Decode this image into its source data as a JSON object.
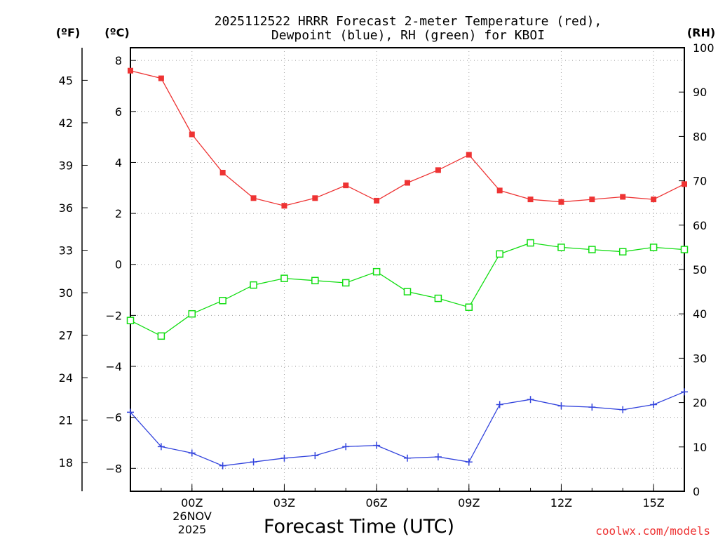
{
  "title_line1": "2025112522 HRRR Forecast 2-meter Temperature (red),",
  "title_line2": "Dewpoint (blue), RH (green) for KBOI",
  "unit_f": "(ºF)",
  "unit_c": "(ºC)",
  "unit_rh": "(RH)",
  "xlabel": "Forecast Time (UTC)",
  "date_day": "26NOV",
  "date_year": "2025",
  "watermark": "coolwx.com/models",
  "colors": {
    "temperature": "#ee3333",
    "dewpoint": "#3344dd",
    "rh": "#11dd11"
  },
  "chart_data": {
    "type": "line",
    "title": "2025112522 HRRR Forecast 2-meter Temperature (red), Dewpoint (blue), RH (green) for KBOI",
    "xlabel": "Forecast Time (UTC)",
    "x": [
      "22Z",
      "23Z",
      "00Z",
      "01Z",
      "02Z",
      "03Z",
      "04Z",
      "05Z",
      "06Z",
      "07Z",
      "08Z",
      "09Z",
      "10Z",
      "11Z",
      "12Z",
      "13Z",
      "14Z",
      "15Z",
      "16Z"
    ],
    "x_tick_labels": [
      "00Z",
      "03Z",
      "06Z",
      "09Z",
      "12Z",
      "15Z"
    ],
    "x_tick_indices": [
      2,
      5,
      8,
      11,
      14,
      17
    ],
    "celsius_axis": {
      "label": "(ºC)",
      "range": [
        -8.9,
        8.5
      ],
      "ticks": [
        -8,
        -6,
        -4,
        -2,
        0,
        2,
        4,
        6,
        8
      ]
    },
    "fahrenheit_axis": {
      "label": "(ºF)",
      "ticks": [
        18,
        21,
        24,
        27,
        30,
        33,
        36,
        39,
        42,
        45
      ]
    },
    "rh_axis": {
      "label": "(RH)",
      "range": [
        0,
        100
      ],
      "ticks": [
        0,
        10,
        20,
        30,
        40,
        50,
        60,
        70,
        80,
        90,
        100
      ]
    },
    "grid": true,
    "series": [
      {
        "name": "Temperature",
        "units": "C",
        "color": "#ee3333",
        "marker": "filled-square",
        "values": [
          7.6,
          7.3,
          5.1,
          3.6,
          2.6,
          2.3,
          2.6,
          3.1,
          2.5,
          3.2,
          3.7,
          4.3,
          2.9,
          2.55,
          2.45,
          2.55,
          2.65,
          2.55,
          3.15
        ]
      },
      {
        "name": "Dewpoint",
        "units": "C",
        "color": "#3344dd",
        "marker": "plus",
        "values": [
          -5.8,
          -7.15,
          -7.4,
          -7.9,
          -7.75,
          -7.6,
          -7.5,
          -7.15,
          -7.1,
          -7.6,
          -7.55,
          -7.75,
          -5.5,
          -5.3,
          -5.55,
          -5.6,
          -5.7,
          -5.5,
          -5.0
        ]
      },
      {
        "name": "RH",
        "units": "%",
        "color": "#11dd11",
        "marker": "open-square",
        "values": [
          38.5,
          35.0,
          40.0,
          43.0,
          46.5,
          48.0,
          47.5,
          47.0,
          49.5,
          45.0,
          43.5,
          41.5,
          53.5,
          56.0,
          55.0,
          54.5,
          54.0,
          55.0,
          54.5
        ]
      }
    ]
  }
}
